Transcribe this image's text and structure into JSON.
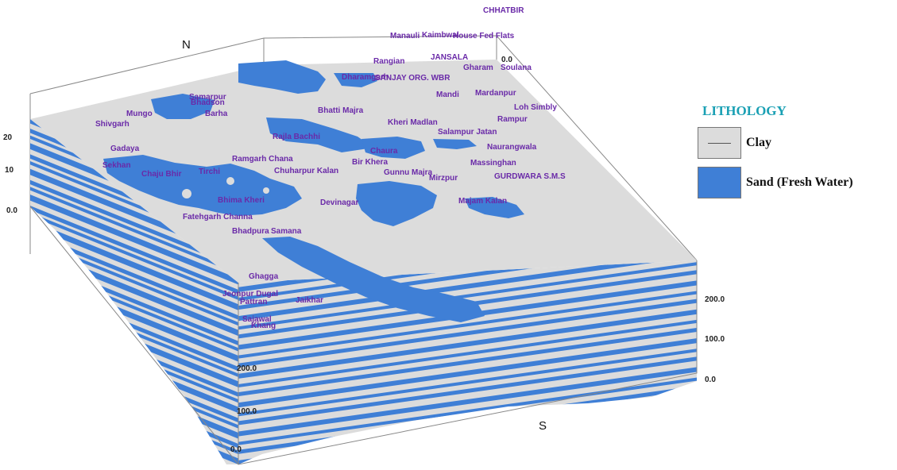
{
  "compass": {
    "north": "N",
    "south": "S"
  },
  "legend": {
    "title": "LITHOLOGY",
    "items": [
      {
        "label": "Clay",
        "color": "#dcdcdc"
      },
      {
        "label": "Sand (Fresh Water)",
        "color": "#3f7fd6"
      }
    ]
  },
  "colors": {
    "clay": "#dcdcdc",
    "sand": "#3f7fd6",
    "labels": "#6a2aa8",
    "frame": "#888888"
  },
  "axis_ticks": {
    "right_side": [
      "200.0",
      "100.0",
      "0.0"
    ],
    "front_corner": [
      "200.0",
      "100.0",
      "0.0"
    ],
    "left_side": [
      "20",
      "10",
      "0.0"
    ],
    "top_back": "0.0"
  },
  "villages": [
    "CHHATBIR",
    "Manauli",
    "Kaimbwal",
    "House Fed Flats",
    "Rangian",
    "JANSALA",
    "Gharam",
    "Soulana",
    "Dharamgarh",
    "SANJAY ORG. WBR",
    "Mardanpur",
    "Mandi",
    "Loh Simbly",
    "Rampur",
    "Samarpur",
    "Bhadson",
    "Mungo",
    "Shivgarh",
    "Barha",
    "Bhatti Majra",
    "Kheri Madlan",
    "Salampur Jatan",
    "Rajla Bachhi",
    "Chaura",
    "Naurangwala",
    "Gadaya",
    "Ramgarh Chana",
    "Bir Khera",
    "Massinghan",
    "GURDWARA S.M.S",
    "Sekhan",
    "Chuharpur Kalan",
    "Gunnu Majra",
    "Mirzpur",
    "Chaju Bhir",
    "Tirchi",
    "Bhima Kheri",
    "Devinagar",
    "Majam Kalan",
    "Fatehgarh Channa",
    "Bhadpura",
    "Samana",
    "Ghagga",
    "Jeonpur Dugal",
    "Pattran",
    "Jaikhar",
    "Sajawal",
    "Khang"
  ]
}
